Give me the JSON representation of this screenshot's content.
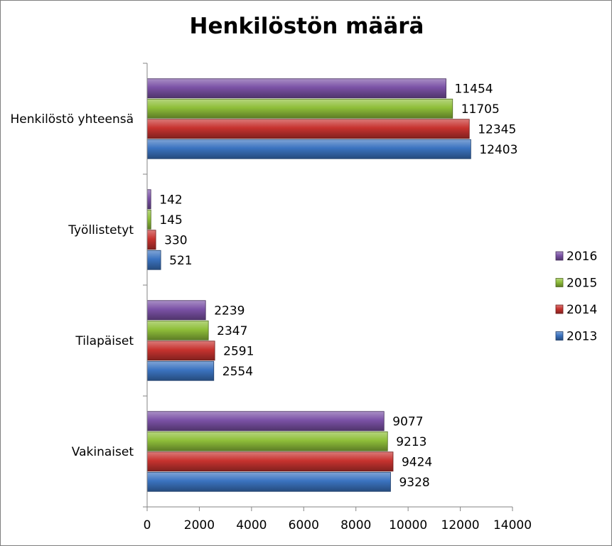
{
  "chart_data": {
    "type": "bar",
    "orientation": "horizontal",
    "title": "Henkilöstön määrä",
    "xlabel": "",
    "ylabel": "",
    "xlim": [
      0,
      14000
    ],
    "x_ticks": [
      "0",
      "2000",
      "4000",
      "6000",
      "8000",
      "10000",
      "12000",
      "14000"
    ],
    "grid": false,
    "legend_position": "right",
    "categories": [
      "Henkilöstö yhteensä",
      "Työllistetyt",
      "Tilapäiset",
      "Vakinaiset"
    ],
    "series": [
      {
        "name": "2016",
        "color": "#7b52a6",
        "values": [
          11454,
          142,
          2239,
          9077
        ]
      },
      {
        "name": "2015",
        "color": "#8fbf3a",
        "values": [
          11705,
          145,
          2347,
          9213
        ]
      },
      {
        "name": "2014",
        "color": "#c7332f",
        "values": [
          12345,
          330,
          2591,
          9424
        ]
      },
      {
        "name": "2013",
        "color": "#3b73c0",
        "values": [
          12403,
          521,
          2554,
          9328
        ]
      }
    ]
  }
}
